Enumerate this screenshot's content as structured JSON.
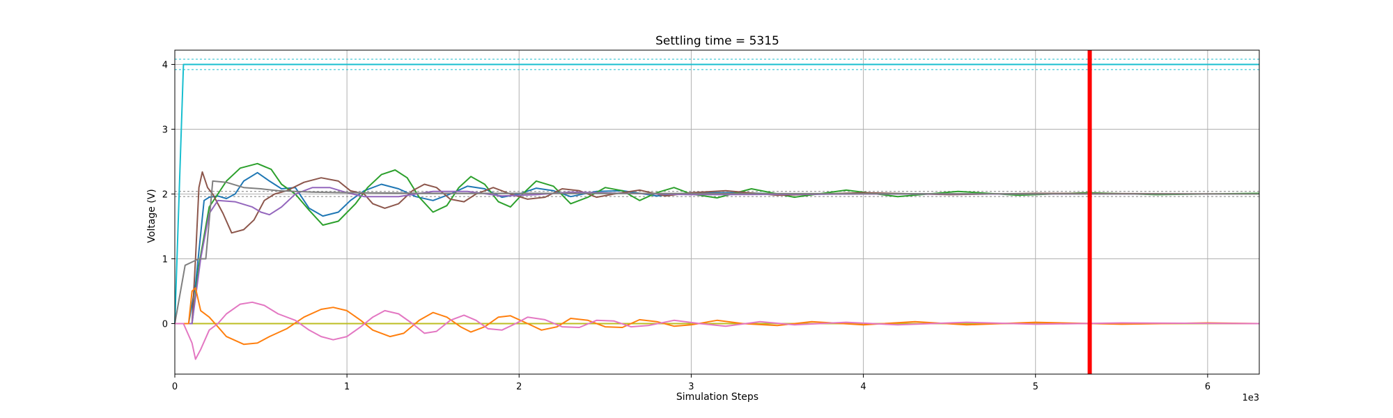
{
  "chart_data": {
    "type": "line",
    "title": "Settling time = 5315",
    "xlabel": "Simulation Steps",
    "ylabel": "Voltage (V)",
    "x_offset_label": "1e3",
    "xlim": [
      0,
      6.3
    ],
    "ylim": [
      -0.78,
      4.22
    ],
    "xticks": [
      0,
      1,
      2,
      3,
      4,
      5,
      6
    ],
    "yticks": [
      0,
      1,
      2,
      3,
      4
    ],
    "grid": true,
    "settling_marker": {
      "x": 5.315,
      "color": "#ff0000"
    },
    "tolerance_bands": [
      {
        "lower": 3.92,
        "upper": 4.08,
        "color": "#17becf"
      },
      {
        "lower": 1.96,
        "upper": 2.04,
        "color": "#7f7f7f"
      }
    ],
    "series": [
      {
        "color": "#17becf",
        "points": [
          [
            0,
            0
          ],
          [
            0.05,
            4.0
          ],
          [
            6.3,
            4.0
          ]
        ]
      },
      {
        "color": "#bcbd22",
        "points": [
          [
            0,
            0
          ],
          [
            6.3,
            0
          ]
        ]
      },
      {
        "color": "#1f77b4",
        "points": [
          [
            0,
            0
          ],
          [
            0.08,
            0
          ],
          [
            0.12,
            0.6
          ],
          [
            0.17,
            1.9
          ],
          [
            0.2,
            1.95
          ],
          [
            0.25,
            1.97
          ],
          [
            0.3,
            1.93
          ],
          [
            0.35,
            2.0
          ],
          [
            0.4,
            2.2
          ],
          [
            0.48,
            2.33
          ],
          [
            0.55,
            2.2
          ],
          [
            0.62,
            2.08
          ],
          [
            0.7,
            2.1
          ],
          [
            0.78,
            1.78
          ],
          [
            0.86,
            1.66
          ],
          [
            0.95,
            1.72
          ],
          [
            1.02,
            1.9
          ],
          [
            1.1,
            2.05
          ],
          [
            1.2,
            2.15
          ],
          [
            1.3,
            2.08
          ],
          [
            1.4,
            1.96
          ],
          [
            1.5,
            1.9
          ],
          [
            1.6,
            2.0
          ],
          [
            1.7,
            2.12
          ],
          [
            1.8,
            2.08
          ],
          [
            1.9,
            1.95
          ],
          [
            2.0,
            2.0
          ],
          [
            2.1,
            2.09
          ],
          [
            2.2,
            2.05
          ],
          [
            2.3,
            1.96
          ],
          [
            2.45,
            2.04
          ],
          [
            2.6,
            2.05
          ],
          [
            2.8,
            1.97
          ],
          [
            3.0,
            2.02
          ],
          [
            3.3,
            2.02
          ],
          [
            3.6,
            1.99
          ],
          [
            4.0,
            2.01
          ],
          [
            4.5,
            2.0
          ],
          [
            5.0,
            2.0
          ],
          [
            6.3,
            2.0
          ]
        ]
      },
      {
        "color": "#2ca02c",
        "points": [
          [
            0,
            0
          ],
          [
            0.1,
            0
          ],
          [
            0.14,
            0.9
          ],
          [
            0.2,
            1.8
          ],
          [
            0.25,
            2.0
          ],
          [
            0.3,
            2.2
          ],
          [
            0.38,
            2.4
          ],
          [
            0.48,
            2.47
          ],
          [
            0.56,
            2.38
          ],
          [
            0.62,
            2.15
          ],
          [
            0.7,
            2.0
          ],
          [
            0.78,
            1.75
          ],
          [
            0.86,
            1.52
          ],
          [
            0.95,
            1.58
          ],
          [
            1.05,
            1.85
          ],
          [
            1.12,
            2.1
          ],
          [
            1.2,
            2.3
          ],
          [
            1.28,
            2.37
          ],
          [
            1.35,
            2.25
          ],
          [
            1.42,
            1.95
          ],
          [
            1.5,
            1.72
          ],
          [
            1.58,
            1.82
          ],
          [
            1.65,
            2.1
          ],
          [
            1.72,
            2.27
          ],
          [
            1.8,
            2.15
          ],
          [
            1.88,
            1.88
          ],
          [
            1.95,
            1.8
          ],
          [
            2.02,
            2.0
          ],
          [
            2.1,
            2.2
          ],
          [
            2.2,
            2.12
          ],
          [
            2.3,
            1.85
          ],
          [
            2.4,
            1.95
          ],
          [
            2.5,
            2.1
          ],
          [
            2.6,
            2.05
          ],
          [
            2.7,
            1.9
          ],
          [
            2.8,
            2.02
          ],
          [
            2.9,
            2.1
          ],
          [
            3.0,
            2.0
          ],
          [
            3.15,
            1.94
          ],
          [
            3.35,
            2.08
          ],
          [
            3.6,
            1.95
          ],
          [
            3.9,
            2.06
          ],
          [
            4.2,
            1.96
          ],
          [
            4.55,
            2.04
          ],
          [
            4.9,
            1.98
          ],
          [
            5.3,
            2.02
          ],
          [
            5.7,
            1.99
          ],
          [
            6.3,
            2.01
          ]
        ]
      },
      {
        "color": "#8c564b",
        "points": [
          [
            0,
            0
          ],
          [
            0.1,
            0
          ],
          [
            0.12,
            1.0
          ],
          [
            0.14,
            2.1
          ],
          [
            0.16,
            2.34
          ],
          [
            0.19,
            2.1
          ],
          [
            0.22,
            2.0
          ],
          [
            0.28,
            1.7
          ],
          [
            0.33,
            1.4
          ],
          [
            0.4,
            1.45
          ],
          [
            0.46,
            1.6
          ],
          [
            0.52,
            1.9
          ],
          [
            0.58,
            2.0
          ],
          [
            0.65,
            2.05
          ],
          [
            0.75,
            2.18
          ],
          [
            0.85,
            2.25
          ],
          [
            0.95,
            2.2
          ],
          [
            1.02,
            2.05
          ],
          [
            1.1,
            2.0
          ],
          [
            1.15,
            1.85
          ],
          [
            1.22,
            1.78
          ],
          [
            1.3,
            1.85
          ],
          [
            1.38,
            2.05
          ],
          [
            1.45,
            2.15
          ],
          [
            1.52,
            2.1
          ],
          [
            1.6,
            1.92
          ],
          [
            1.68,
            1.88
          ],
          [
            1.75,
            2.0
          ],
          [
            1.85,
            2.1
          ],
          [
            1.95,
            2.0
          ],
          [
            2.05,
            1.92
          ],
          [
            2.15,
            1.95
          ],
          [
            2.25,
            2.08
          ],
          [
            2.35,
            2.05
          ],
          [
            2.45,
            1.95
          ],
          [
            2.55,
            2.0
          ],
          [
            2.7,
            2.06
          ],
          [
            2.85,
            1.97
          ],
          [
            3.0,
            2.02
          ],
          [
            3.2,
            2.05
          ],
          [
            3.5,
            1.98
          ],
          [
            4.0,
            2.02
          ],
          [
            4.5,
            1.99
          ],
          [
            5.0,
            2.01
          ],
          [
            6.3,
            2.0
          ]
        ]
      },
      {
        "color": "#9467bd",
        "points": [
          [
            0,
            0
          ],
          [
            0.1,
            0
          ],
          [
            0.15,
            1.0
          ],
          [
            0.2,
            1.7
          ],
          [
            0.25,
            1.9
          ],
          [
            0.35,
            1.88
          ],
          [
            0.45,
            1.8
          ],
          [
            0.5,
            1.72
          ],
          [
            0.55,
            1.68
          ],
          [
            0.62,
            1.8
          ],
          [
            0.7,
            2.0
          ],
          [
            0.8,
            2.1
          ],
          [
            0.9,
            2.1
          ],
          [
            1.0,
            2.02
          ],
          [
            1.1,
            1.96
          ],
          [
            1.3,
            1.96
          ],
          [
            1.5,
            2.04
          ],
          [
            1.7,
            2.04
          ],
          [
            1.9,
            1.97
          ],
          [
            2.1,
            1.99
          ],
          [
            2.3,
            2.03
          ],
          [
            2.6,
            2.01
          ],
          [
            3.0,
            1.99
          ],
          [
            4.0,
            2.0
          ],
          [
            6.3,
            2.0
          ]
        ]
      },
      {
        "color": "#7f7f7f",
        "points": [
          [
            0,
            0
          ],
          [
            0.02,
            0.3
          ],
          [
            0.06,
            0.9
          ],
          [
            0.1,
            0.95
          ],
          [
            0.14,
            1.0
          ],
          [
            0.18,
            1.0
          ],
          [
            0.22,
            2.2
          ],
          [
            0.3,
            2.18
          ],
          [
            0.4,
            2.1
          ],
          [
            0.5,
            2.08
          ],
          [
            0.6,
            2.05
          ],
          [
            0.8,
            2.03
          ],
          [
            1.0,
            2.02
          ],
          [
            1.5,
            2.01
          ],
          [
            2.0,
            2.01
          ],
          [
            6.3,
            2.0
          ]
        ]
      },
      {
        "color": "#ff7f0e",
        "points": [
          [
            0,
            0
          ],
          [
            0.08,
            0
          ],
          [
            0.1,
            0.5
          ],
          [
            0.12,
            0.55
          ],
          [
            0.15,
            0.2
          ],
          [
            0.2,
            0.1
          ],
          [
            0.25,
            -0.05
          ],
          [
            0.3,
            -0.2
          ],
          [
            0.4,
            -0.32
          ],
          [
            0.48,
            -0.3
          ],
          [
            0.55,
            -0.2
          ],
          [
            0.65,
            -0.08
          ],
          [
            0.75,
            0.1
          ],
          [
            0.85,
            0.22
          ],
          [
            0.92,
            0.25
          ],
          [
            1.0,
            0.2
          ],
          [
            1.08,
            0.05
          ],
          [
            1.15,
            -0.1
          ],
          [
            1.25,
            -0.2
          ],
          [
            1.33,
            -0.15
          ],
          [
            1.42,
            0.05
          ],
          [
            1.5,
            0.17
          ],
          [
            1.58,
            0.1
          ],
          [
            1.66,
            -0.05
          ],
          [
            1.72,
            -0.13
          ],
          [
            1.8,
            -0.05
          ],
          [
            1.88,
            0.1
          ],
          [
            1.95,
            0.12
          ],
          [
            2.05,
            0.0
          ],
          [
            2.13,
            -0.1
          ],
          [
            2.22,
            -0.05
          ],
          [
            2.3,
            0.08
          ],
          [
            2.4,
            0.05
          ],
          [
            2.5,
            -0.05
          ],
          [
            2.6,
            -0.06
          ],
          [
            2.7,
            0.06
          ],
          [
            2.8,
            0.03
          ],
          [
            2.9,
            -0.04
          ],
          [
            3.0,
            -0.02
          ],
          [
            3.15,
            0.05
          ],
          [
            3.3,
            0.0
          ],
          [
            3.5,
            -0.03
          ],
          [
            3.7,
            0.03
          ],
          [
            4.0,
            -0.02
          ],
          [
            4.3,
            0.03
          ],
          [
            4.6,
            -0.02
          ],
          [
            5.0,
            0.02
          ],
          [
            5.5,
            -0.01
          ],
          [
            6.0,
            0.01
          ],
          [
            6.3,
            0.0
          ]
        ]
      },
      {
        "color": "#e377c2",
        "points": [
          [
            0,
            0
          ],
          [
            0.05,
            0
          ],
          [
            0.1,
            -0.3
          ],
          [
            0.12,
            -0.55
          ],
          [
            0.15,
            -0.4
          ],
          [
            0.2,
            -0.1
          ],
          [
            0.25,
            0.0
          ],
          [
            0.3,
            0.15
          ],
          [
            0.38,
            0.3
          ],
          [
            0.45,
            0.33
          ],
          [
            0.52,
            0.28
          ],
          [
            0.6,
            0.15
          ],
          [
            0.7,
            0.05
          ],
          [
            0.78,
            -0.1
          ],
          [
            0.85,
            -0.2
          ],
          [
            0.92,
            -0.25
          ],
          [
            1.0,
            -0.2
          ],
          [
            1.08,
            -0.05
          ],
          [
            1.15,
            0.1
          ],
          [
            1.22,
            0.2
          ],
          [
            1.3,
            0.15
          ],
          [
            1.38,
            0.0
          ],
          [
            1.45,
            -0.15
          ],
          [
            1.52,
            -0.12
          ],
          [
            1.6,
            0.05
          ],
          [
            1.68,
            0.13
          ],
          [
            1.75,
            0.05
          ],
          [
            1.82,
            -0.08
          ],
          [
            1.9,
            -0.1
          ],
          [
            1.98,
            0.0
          ],
          [
            2.05,
            0.1
          ],
          [
            2.15,
            0.06
          ],
          [
            2.25,
            -0.05
          ],
          [
            2.35,
            -0.06
          ],
          [
            2.45,
            0.05
          ],
          [
            2.55,
            0.04
          ],
          [
            2.65,
            -0.05
          ],
          [
            2.75,
            -0.03
          ],
          [
            2.9,
            0.05
          ],
          [
            3.05,
            0.0
          ],
          [
            3.2,
            -0.04
          ],
          [
            3.4,
            0.03
          ],
          [
            3.6,
            -0.02
          ],
          [
            3.9,
            0.02
          ],
          [
            4.2,
            -0.02
          ],
          [
            4.6,
            0.02
          ],
          [
            5.0,
            -0.01
          ],
          [
            5.5,
            0.01
          ],
          [
            6.3,
            0.0
          ]
        ]
      }
    ]
  }
}
